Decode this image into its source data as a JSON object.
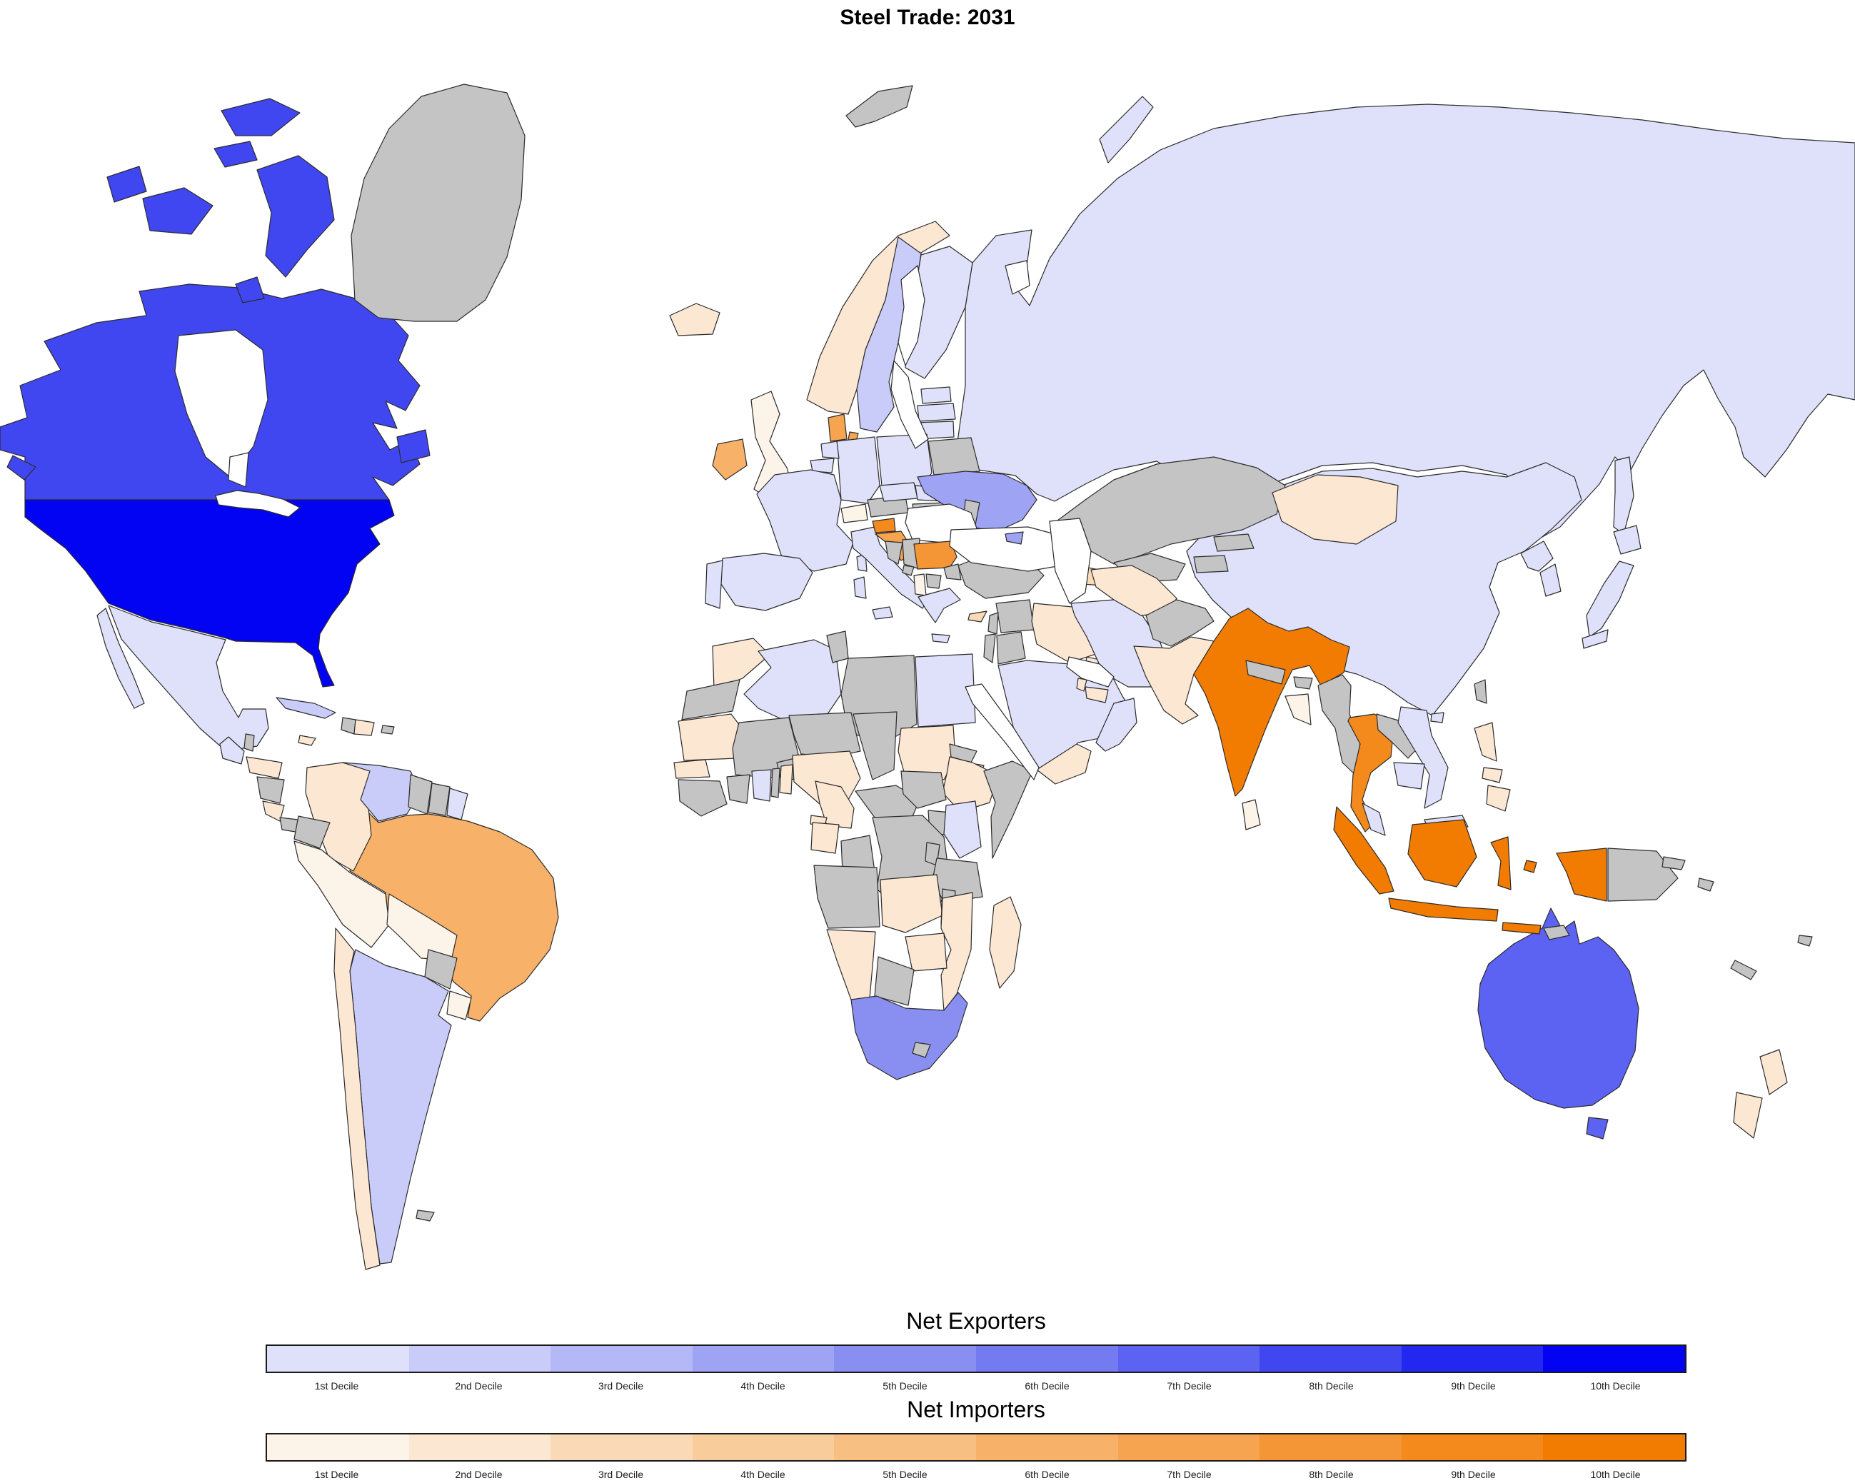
{
  "title": "Steel Trade: 2031",
  "legends": {
    "exporters": {
      "title": "Net Exporters",
      "labels": [
        "1st Decile",
        "2nd Decile",
        "3rd Decile",
        "4th Decile",
        "5th Decile",
        "6th Decile",
        "7th Decile",
        "8th Decile",
        "9th Decile",
        "10th Decile"
      ],
      "colors": [
        "#dfe1fa",
        "#c9ccf8",
        "#b4b8f6",
        "#9ea3f3",
        "#898ff1",
        "#747af0",
        "#5c62f1",
        "#4147f0",
        "#2228ef",
        "#0303f3"
      ]
    },
    "importers": {
      "title": "Net Importers",
      "labels": [
        "1st Decile",
        "2nd Decile",
        "3rd Decile",
        "4th Decile",
        "5th Decile",
        "6th Decile",
        "7th Decile",
        "8th Decile",
        "9th Decile",
        "10th Decile"
      ],
      "colors": [
        "#fdf4e9",
        "#fce7d3",
        "#fad9b6",
        "#f9cc9c",
        "#f8bf82",
        "#f7b169",
        "#f6a44f",
        "#f59636",
        "#f4891c",
        "#f27c02"
      ]
    }
  },
  "chart_data": {
    "type": "choropleth_map",
    "title": "Steel Trade: 2031",
    "classification": "deciles (1st-10th) within Net Exporters (blue) and Net Importers (orange)",
    "no_data_color": "#c4c4c4",
    "neutral_color": "#ffffff",
    "ocean_color": "#ffffff",
    "border_color": "#2b2b2b",
    "countries": {
      "United States": [
        "exporter",
        10
      ],
      "Canada": [
        "exporter",
        8
      ],
      "Australia": [
        "exporter",
        7
      ],
      "South Africa": [
        "exporter",
        5
      ],
      "Ukraine": [
        "exporter",
        4
      ],
      "Sweden": [
        "exporter",
        2
      ],
      "Argentina": [
        "exporter",
        2
      ],
      "Venezuela": [
        "exporter",
        2
      ],
      "Cuba": [
        "exporter",
        2
      ],
      "Mexico": [
        "exporter",
        1
      ],
      "Guatemala": [
        "exporter",
        1
      ],
      "Russia": [
        "exporter",
        1
      ],
      "China": [
        "exporter",
        1
      ],
      "Japan": [
        "exporter",
        1
      ],
      "South Korea": [
        "exporter",
        1
      ],
      "North Korea": [
        "exporter",
        1
      ],
      "Vietnam": [
        "exporter",
        1
      ],
      "Cambodia": [
        "exporter",
        1
      ],
      "Malaysia": [
        "exporter",
        1
      ],
      "Finland": [
        "exporter",
        1
      ],
      "Germany": [
        "exporter",
        1
      ],
      "Poland": [
        "exporter",
        1
      ],
      "France": [
        "exporter",
        1
      ],
      "Spain": [
        "exporter",
        1
      ],
      "Portugal": [
        "exporter",
        1
      ],
      "Italy": [
        "exporter",
        1
      ],
      "Greece": [
        "exporter",
        1
      ],
      "Netherlands": [
        "exporter",
        1
      ],
      "Belgium": [
        "exporter",
        1
      ],
      "Czechia": [
        "exporter",
        1
      ],
      "Slovakia": [
        "exporter",
        1
      ],
      "Estonia": [
        "exporter",
        1
      ],
      "Latvia": [
        "exporter",
        1
      ],
      "Lithuania": [
        "exporter",
        1
      ],
      "Egypt": [
        "exporter",
        1
      ],
      "Algeria": [
        "exporter",
        1
      ],
      "Kenya": [
        "exporter",
        1
      ],
      "Ghana": [
        "exporter",
        1
      ],
      "Saudi Arabia": [
        "exporter",
        1
      ],
      "Oman": [
        "exporter",
        1
      ],
      "Iran": [
        "exporter",
        1
      ],
      "French Guiana": [
        "exporter",
        1
      ],
      "India": [
        "importer",
        10
      ],
      "Indonesia": [
        "importer",
        10
      ],
      "Slovenia": [
        "importer",
        9
      ],
      "Thailand": [
        "importer",
        9
      ],
      "Bulgaria": [
        "importer",
        8
      ],
      "Croatia": [
        "importer",
        7
      ],
      "Denmark": [
        "importer",
        7
      ],
      "Brazil": [
        "importer",
        6
      ],
      "Ireland": [
        "importer",
        6
      ],
      "Cyprus": [
        "importer",
        3
      ],
      "Azerbaijan": [
        "importer",
        3
      ],
      "Norway": [
        "importer",
        2
      ],
      "Iceland": [
        "importer",
        2
      ],
      "Mongolia": [
        "importer",
        2
      ],
      "Pakistan": [
        "importer",
        2
      ],
      "Turkmenistan": [
        "importer",
        2
      ],
      "Philippines": [
        "importer",
        2
      ],
      "New Zealand": [
        "importer",
        2
      ],
      "Colombia": [
        "importer",
        2
      ],
      "Chile": [
        "importer",
        2
      ],
      "Morocco": [
        "importer",
        2
      ],
      "Mauritania": [
        "importer",
        2
      ],
      "Senegal": [
        "importer",
        2
      ],
      "Nigeria": [
        "importer",
        2
      ],
      "Benin": [
        "importer",
        2
      ],
      "Cameroon": [
        "importer",
        2
      ],
      "Gabon": [
        "importer",
        2
      ],
      "Equatorial Guinea": [
        "importer",
        2
      ],
      "Sudan": [
        "importer",
        2
      ],
      "Ethiopia": [
        "importer",
        2
      ],
      "Zambia": [
        "importer",
        2
      ],
      "Mozambique": [
        "importer",
        2
      ],
      "Zimbabwe": [
        "importer",
        2
      ],
      "Namibia": [
        "importer",
        2
      ],
      "Madagascar": [
        "importer",
        2
      ],
      "Yemen": [
        "importer",
        2
      ],
      "Iraq": [
        "importer",
        2
      ],
      "United Arab Emirates": [
        "importer",
        2
      ],
      "Qatar": [
        "importer",
        2
      ],
      "Kuwait": [
        "importer",
        2
      ],
      "Jamaica": [
        "importer",
        2
      ],
      "Dominican Republic": [
        "importer",
        2
      ],
      "Costa Rica": [
        "importer",
        2
      ],
      "Honduras": [
        "importer",
        2
      ],
      "United Kingdom": [
        "importer",
        1
      ],
      "Switzerland": [
        "importer",
        1
      ],
      "Albania": [
        "importer",
        1
      ],
      "Bangladesh": [
        "importer",
        1
      ],
      "Sri Lanka": [
        "importer",
        1
      ],
      "Peru": [
        "importer",
        1
      ],
      "Bolivia": [
        "importer",
        1
      ],
      "Uruguay": [
        "importer",
        1
      ],
      "Romania": [
        "neutral",
        0
      ],
      "Greenland": [
        "no_data",
        0
      ],
      "Belize": [
        "no_data",
        0
      ],
      "Haiti": [
        "no_data",
        0
      ],
      "Puerto Rico": [
        "no_data",
        0
      ],
      "Nicaragua": [
        "no_data",
        0
      ],
      "Panama": [
        "no_data",
        0
      ],
      "Ecuador": [
        "no_data",
        0
      ],
      "Guyana": [
        "no_data",
        0
      ],
      "Suriname": [
        "no_data",
        0
      ],
      "Paraguay": [
        "no_data",
        0
      ],
      "Falkland Islands": [
        "no_data",
        0
      ],
      "Western Sahara": [
        "no_data",
        0
      ],
      "Mali": [
        "no_data",
        0
      ],
      "Burkina Faso": [
        "no_data",
        0
      ],
      "Niger": [
        "no_data",
        0
      ],
      "Chad": [
        "no_data",
        0
      ],
      "Libya": [
        "no_data",
        0
      ],
      "Tunisia": [
        "no_data",
        0
      ],
      "Guinea": [
        "no_data",
        0
      ],
      "Côte d'Ivoire": [
        "no_data",
        0
      ],
      "Togo": [
        "no_data",
        0
      ],
      "Central African Republic": [
        "no_data",
        0
      ],
      "South Sudan": [
        "no_data",
        0
      ],
      "Eritrea": [
        "no_data",
        0
      ],
      "Djibouti": [
        "no_data",
        0
      ],
      "Somalia": [
        "no_data",
        0
      ],
      "Uganda": [
        "no_data",
        0
      ],
      "Rwanda": [
        "no_data",
        0
      ],
      "Tanzania": [
        "no_data",
        0
      ],
      "DR Congo": [
        "no_data",
        0
      ],
      "Republic of the Congo": [
        "no_data",
        0
      ],
      "Angola": [
        "no_data",
        0
      ],
      "Malawi": [
        "no_data",
        0
      ],
      "Botswana": [
        "no_data",
        0
      ],
      "Lesotho": [
        "no_data",
        0
      ],
      "Turkey": [
        "no_data",
        0
      ],
      "Syria": [
        "no_data",
        0
      ],
      "Lebanon": [
        "no_data",
        0
      ],
      "Israel": [
        "no_data",
        0
      ],
      "Jordan": [
        "no_data",
        0
      ],
      "Georgia": [
        "no_data",
        0
      ],
      "Armenia": [
        "no_data",
        0
      ],
      "Kazakhstan": [
        "no_data",
        0
      ],
      "Uzbekistan": [
        "no_data",
        0
      ],
      "Kyrgyzstan": [
        "no_data",
        0
      ],
      "Tajikistan": [
        "no_data",
        0
      ],
      "Afghanistan": [
        "no_data",
        0
      ],
      "Nepal": [
        "no_data",
        0
      ],
      "Bhutan": [
        "no_data",
        0
      ],
      "Myanmar": [
        "no_data",
        0
      ],
      "Laos": [
        "no_data",
        0
      ],
      "Taiwan": [
        "no_data",
        0
      ],
      "Papua New Guinea": [
        "no_data",
        0
      ],
      "East Timor": [
        "no_data",
        0
      ],
      "Solomon Islands": [
        "no_data",
        0
      ],
      "Fiji": [
        "no_data",
        0
      ],
      "New Caledonia": [
        "no_data",
        0
      ],
      "Belarus": [
        "no_data",
        0
      ],
      "Austria": [
        "no_data",
        0
      ],
      "Hungary": [
        "no_data",
        0
      ],
      "Serbia": [
        "no_data",
        0
      ],
      "Bosnia and Herzegovina": [
        "no_data",
        0
      ],
      "North Macedonia": [
        "no_data",
        0
      ],
      "Montenegro": [
        "no_data",
        0
      ],
      "Moldova": [
        "no_data",
        0
      ],
      "Svalbard": [
        "no_data",
        0
      ]
    }
  }
}
